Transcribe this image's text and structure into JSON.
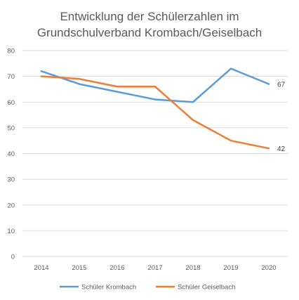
{
  "chart_data": {
    "type": "line",
    "title_lines": [
      "Entwicklung der Schülerzahlen im",
      "Grundschulverband Krombach/Geiselbach"
    ],
    "categories": [
      "2014",
      "2015",
      "2016",
      "2017",
      "2018",
      "2019",
      "2020"
    ],
    "ylim": [
      0,
      80
    ],
    "yticks": [
      0,
      10,
      20,
      30,
      40,
      50,
      60,
      70,
      80
    ],
    "grid": true,
    "legend_position": "bottom",
    "series": [
      {
        "name": "Schüler Krombach",
        "color": "#5b9bd5",
        "values": [
          72,
          67,
          64,
          61,
          60,
          73,
          67
        ],
        "end_label": "67"
      },
      {
        "name": "Schüler Geiselbach",
        "color": "#ed7d31",
        "values": [
          70,
          69,
          66,
          66,
          53,
          45,
          42
        ],
        "end_label": "42"
      }
    ]
  }
}
